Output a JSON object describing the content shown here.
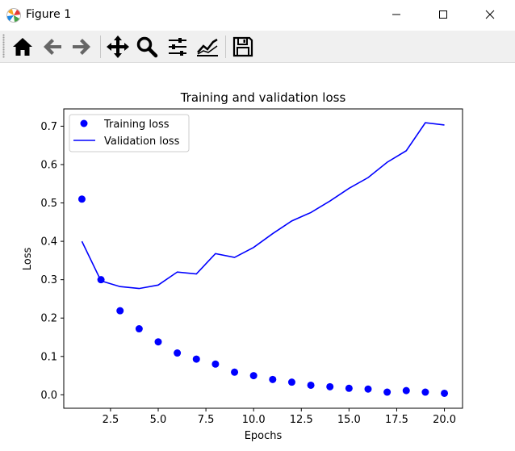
{
  "window": {
    "title": "Figure 1"
  },
  "toolbar": {
    "buttons": [
      {
        "name": "home-icon"
      },
      {
        "name": "back-arrow-icon"
      },
      {
        "name": "forward-arrow-icon"
      },
      {
        "name": "pan-icon"
      },
      {
        "name": "zoom-icon"
      },
      {
        "name": "subplots-config-icon"
      },
      {
        "name": "edit-axis-icon"
      },
      {
        "name": "save-icon"
      }
    ]
  },
  "chart_data": {
    "type": "line",
    "title": "Training and validation loss",
    "xlabel": "Epochs",
    "ylabel": "Loss",
    "xlim": [
      0.05,
      20.95
    ],
    "ylim": [
      -0.035,
      0.745
    ],
    "xticks": [
      2.5,
      5.0,
      7.5,
      10.0,
      12.5,
      15.0,
      17.5,
      20.0
    ],
    "xtick_labels": [
      "2.5",
      "5.0",
      "7.5",
      "10.0",
      "12.5",
      "15.0",
      "17.5",
      "20.0"
    ],
    "yticks": [
      0.0,
      0.1,
      0.2,
      0.3,
      0.4,
      0.5,
      0.6,
      0.7
    ],
    "ytick_labels": [
      "0.0",
      "0.1",
      "0.2",
      "0.3",
      "0.4",
      "0.5",
      "0.6",
      "0.7"
    ],
    "grid": false,
    "legend_position": "top-left",
    "x": [
      1,
      2,
      3,
      4,
      5,
      6,
      7,
      8,
      9,
      10,
      11,
      12,
      13,
      14,
      15,
      16,
      17,
      18,
      19,
      20
    ],
    "series": [
      {
        "name": "Training loss",
        "style": "points",
        "color": "#0000ff",
        "values": [
          0.51,
          0.3,
          0.219,
          0.172,
          0.138,
          0.109,
          0.093,
          0.08,
          0.059,
          0.05,
          0.04,
          0.033,
          0.025,
          0.021,
          0.017,
          0.015,
          0.007,
          0.011,
          0.007,
          0.004
        ]
      },
      {
        "name": "Validation loss",
        "style": "line",
        "color": "#0000ff",
        "values": [
          0.4,
          0.297,
          0.282,
          0.277,
          0.286,
          0.32,
          0.315,
          0.368,
          0.358,
          0.384,
          0.42,
          0.453,
          0.475,
          0.505,
          0.538,
          0.566,
          0.606,
          0.636,
          0.709,
          0.703
        ]
      }
    ]
  }
}
